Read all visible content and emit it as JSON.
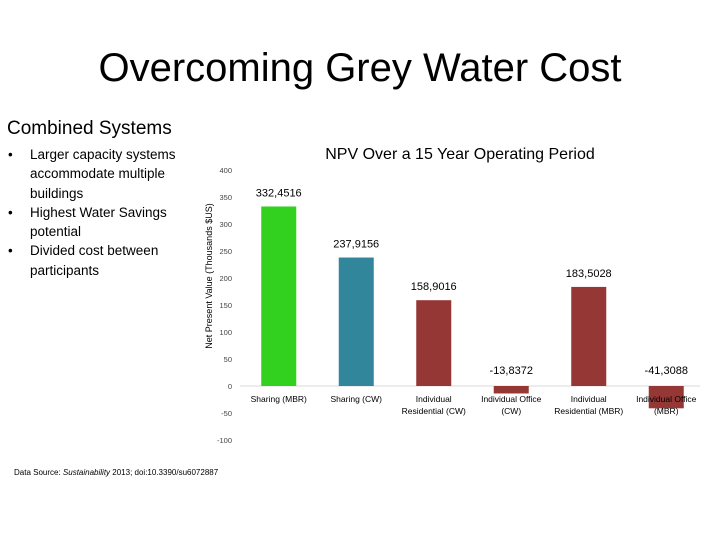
{
  "slide": {
    "title": "Overcoming Grey Water Cost",
    "section_title": "Combined Systems",
    "bullets": [
      "Larger capacity systems accommodate multiple buildings",
      "Highest Water Savings potential",
      "Divided cost between participants"
    ],
    "bullet_glyph": "•",
    "data_source_prefix": "Data Source: ",
    "data_source_journal": "Sustainability",
    "data_source_rest": " 2013; doi:10.3390/su6072887"
  },
  "chart_data": {
    "type": "bar",
    "title": "NPV Over a 15 Year Operating Period",
    "ylabel": "Net Present Value (Thousands $US)",
    "xlabel": "",
    "ylim": [
      -100,
      400
    ],
    "yticks": [
      -100,
      -50,
      0,
      50,
      100,
      150,
      200,
      250,
      300,
      350,
      400
    ],
    "grid": false,
    "categories": [
      [
        "Sharing (MBR)"
      ],
      [
        "Sharing (CW)"
      ],
      [
        "Individual",
        "Residential (CW)"
      ],
      [
        "Individual Office",
        "(CW)"
      ],
      [
        "Individual",
        "Residential (MBR)"
      ],
      [
        "Individual Office",
        "(MBR)"
      ]
    ],
    "values": [
      332.4516,
      237.9156,
      158.9016,
      -13.8372,
      183.5028,
      -41.3088
    ],
    "data_labels": [
      "332,4516",
      "237,9156",
      "158,9016",
      "-13,8372",
      "183,5028",
      "-41,3088"
    ],
    "colors": [
      "#33d11f",
      "#31869b",
      "#953735",
      "#953735",
      "#953735",
      "#953735"
    ]
  }
}
